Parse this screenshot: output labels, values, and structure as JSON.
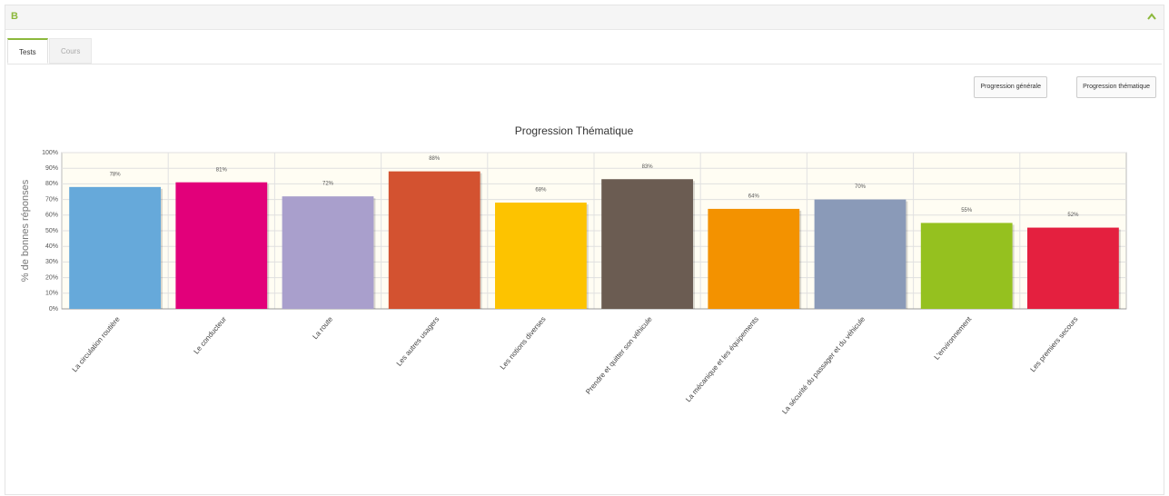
{
  "ui": {
    "panel_title": "B",
    "tabs": [
      "Tests",
      "Cours"
    ],
    "buttons": [
      "Progression générale",
      "Progression thématique"
    ]
  },
  "chart_data": {
    "type": "bar",
    "title": "Progression Thématique",
    "y_label": "% de bonnes réponses",
    "categories": [
      "La circulation routière",
      "Le conducteur",
      "La route",
      "Les autres usagers",
      "Les notions diverses",
      "Prendre et quitter son véhicule",
      "La mécanique et les équipements",
      "La sécurité du passager et du véhicule",
      "L'environnement",
      "Les premiers secours"
    ],
    "values": [
      78,
      81,
      72,
      88,
      68,
      83,
      64,
      70,
      55,
      52
    ],
    "value_labels": [
      "78%",
      "81%",
      "72%",
      "88%",
      "68%",
      "83%",
      "64%",
      "70%",
      "55%",
      "52%"
    ],
    "colors": [
      "#66a9da",
      "#e2007a",
      "#a99fcc",
      "#d35230",
      "#fdc300",
      "#6b5c52",
      "#f39200",
      "#8a9ab8",
      "#95c11f",
      "#e4203f"
    ],
    "ylim": [
      0,
      100
    ],
    "yticks": [
      {
        "value": 0,
        "label": "0%"
      },
      {
        "value": 10,
        "label": "10%"
      },
      {
        "value": 20,
        "label": "20%"
      },
      {
        "value": 30,
        "label": "30%"
      },
      {
        "value": 40,
        "label": "40%"
      },
      {
        "value": 50,
        "label": "50%"
      },
      {
        "value": 60,
        "label": "60%"
      },
      {
        "value": 70,
        "label": "70%"
      },
      {
        "value": 80,
        "label": "80%"
      },
      {
        "value": 90,
        "label": "90%"
      },
      {
        "value": 100,
        "label": "100%"
      }
    ],
    "grid": true
  }
}
